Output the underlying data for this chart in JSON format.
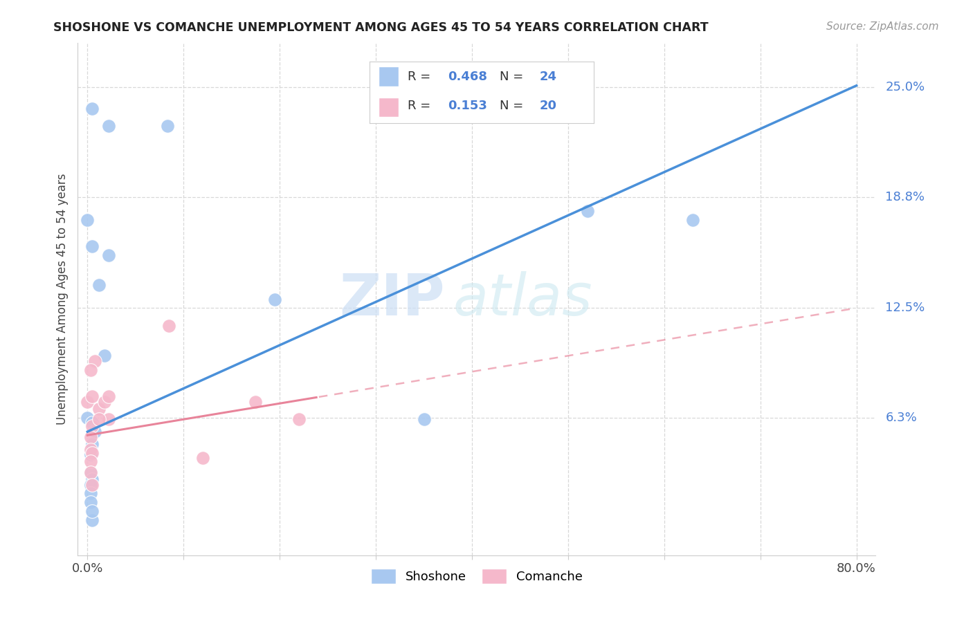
{
  "title": "SHOSHONE VS COMANCHE UNEMPLOYMENT AMONG AGES 45 TO 54 YEARS CORRELATION CHART",
  "source": "Source: ZipAtlas.com",
  "ylabel": "Unemployment Among Ages 45 to 54 years",
  "xlim": [
    -0.01,
    0.82
  ],
  "ylim": [
    -0.015,
    0.275
  ],
  "xtick_positions": [
    0.0,
    0.1,
    0.2,
    0.3,
    0.4,
    0.5,
    0.6,
    0.7,
    0.8
  ],
  "xticklabels": [
    "0.0%",
    "",
    "",
    "",
    "",
    "",
    "",
    "",
    "80.0%"
  ],
  "ytick_vals_right": [
    0.25,
    0.188,
    0.125,
    0.063
  ],
  "ytick_labels_right": [
    "25.0%",
    "18.8%",
    "12.5%",
    "6.3%"
  ],
  "shoshone_R": 0.468,
  "shoshone_N": 24,
  "comanche_R": 0.153,
  "comanche_N": 20,
  "shoshone_color": "#a8c8f0",
  "comanche_color": "#f5b8cb",
  "shoshone_line_color": "#4a90d9",
  "comanche_line_color": "#e8849a",
  "legend_text_color": "#4a7fd4",
  "shoshone_scatter_x": [
    0.005,
    0.022,
    0.083,
    0.0,
    0.005,
    0.012,
    0.018,
    0.022,
    0.0,
    0.005,
    0.008,
    0.005,
    0.003,
    0.003,
    0.005,
    0.003,
    0.003,
    0.003,
    0.52,
    0.63,
    0.195,
    0.35,
    0.005,
    0.005
  ],
  "shoshone_scatter_y": [
    0.238,
    0.228,
    0.228,
    0.175,
    0.16,
    0.138,
    0.098,
    0.155,
    0.063,
    0.06,
    0.055,
    0.048,
    0.042,
    0.032,
    0.028,
    0.025,
    0.02,
    0.015,
    0.18,
    0.175,
    0.13,
    0.062,
    0.005,
    0.01
  ],
  "comanche_scatter_x": [
    0.0,
    0.005,
    0.012,
    0.018,
    0.022,
    0.005,
    0.008,
    0.003,
    0.003,
    0.003,
    0.022,
    0.012,
    0.005,
    0.175,
    0.22,
    0.085,
    0.003,
    0.003,
    0.005,
    0.12
  ],
  "comanche_scatter_y": [
    0.072,
    0.075,
    0.068,
    0.072,
    0.062,
    0.058,
    0.095,
    0.09,
    0.052,
    0.045,
    0.075,
    0.062,
    0.043,
    0.072,
    0.062,
    0.115,
    0.038,
    0.032,
    0.025,
    0.04
  ],
  "watermark_zip": "ZIP",
  "watermark_atlas": "atlas",
  "background_color": "#ffffff",
  "grid_color": "#d8d8d8"
}
